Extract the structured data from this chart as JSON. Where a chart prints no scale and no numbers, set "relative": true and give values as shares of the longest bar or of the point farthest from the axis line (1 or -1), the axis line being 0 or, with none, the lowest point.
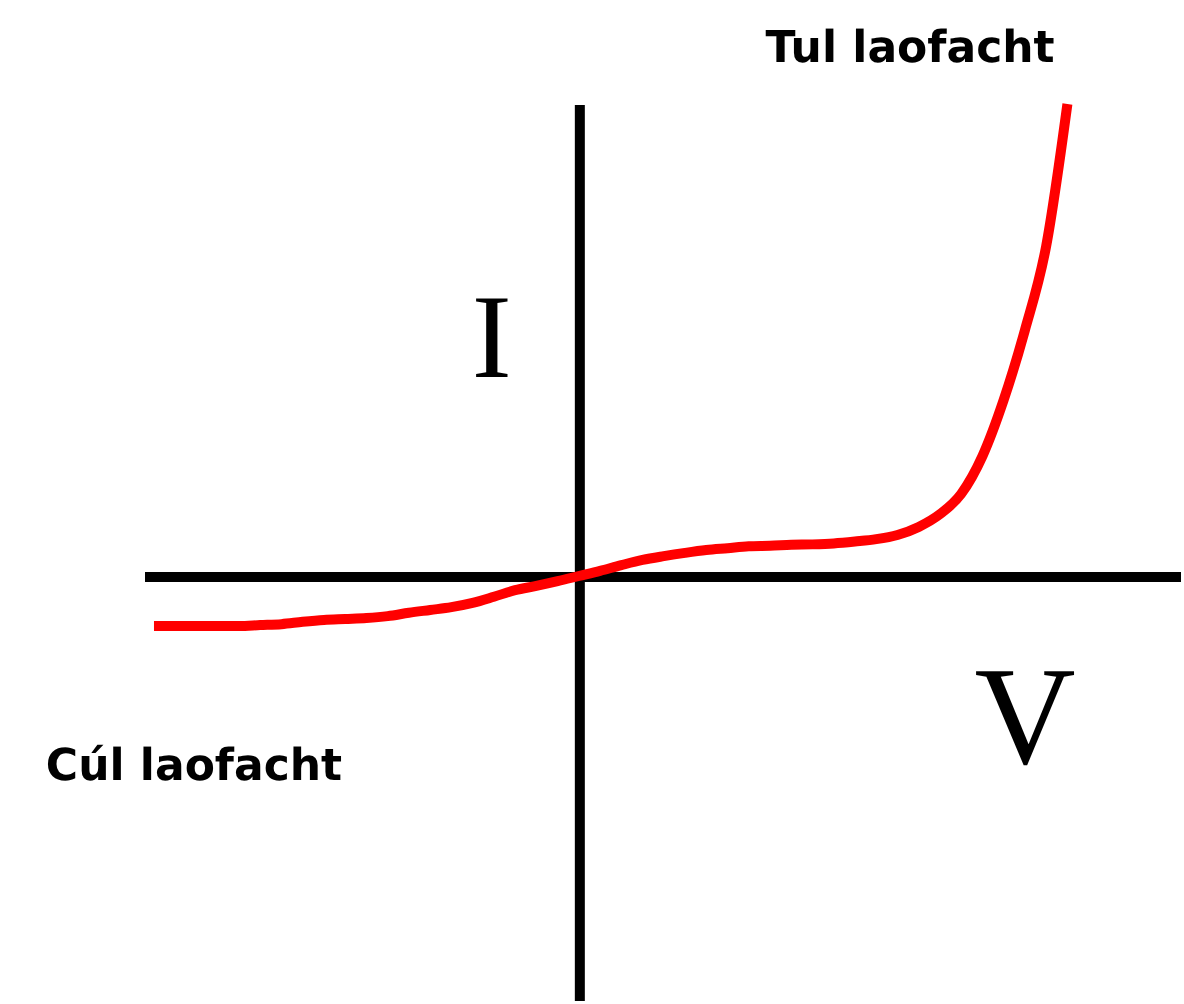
{
  "chart_data": {
    "type": "line",
    "relative": true,
    "xlabel": "V",
    "ylabel": "I",
    "annotations": [
      "Tul laofacht",
      "Cúl laofacht"
    ],
    "categories": [
      null,
      null,
      null,
      null,
      null,
      null,
      null,
      null,
      null,
      null,
      null,
      null,
      null,
      null,
      null,
      null,
      null,
      null,
      null,
      null,
      null,
      null,
      null,
      null,
      null,
      null,
      null,
      null,
      null,
      null,
      null,
      null,
      null,
      null,
      null,
      null,
      null,
      null,
      null,
      null,
      null,
      null,
      null,
      null
    ],
    "series": [
      {
        "color": "#ff0000",
        "values": [
          -0.106,
          -0.106,
          -0.106,
          -0.106,
          -0.106,
          -0.104,
          -0.102,
          -0.097,
          -0.093,
          -0.091,
          -0.089,
          -0.085,
          -0.078,
          -0.072,
          -0.066,
          -0.057,
          -0.044,
          -0.03,
          -0.021,
          -0.011,
          0,
          0.011,
          0.023,
          0.034,
          0.042,
          0.049,
          0.055,
          0.059,
          0.063,
          0.064,
          0.066,
          0.067,
          0.069,
          0.073,
          0.078,
          0.087,
          0.104,
          0.131,
          0.174,
          0.254,
          0.373,
          0.521,
          0.699,
          1
        ]
      }
    ]
  }
}
